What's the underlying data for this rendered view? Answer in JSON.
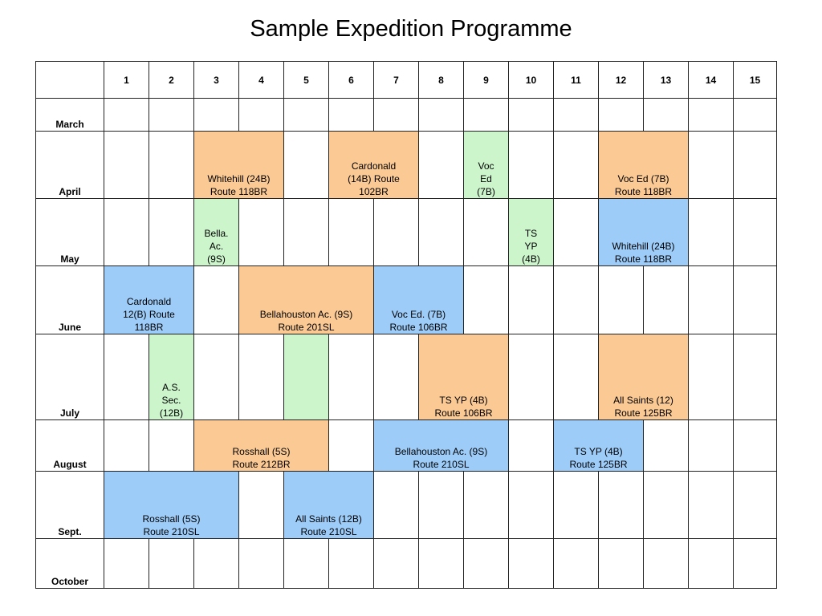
{
  "title": "Sample Expedition Programme",
  "weeks": [
    "1",
    "2",
    "3",
    "4",
    "5",
    "6",
    "7",
    "8",
    "9",
    "10",
    "11",
    "12",
    "13",
    "14",
    "15"
  ],
  "colors": {
    "orange": "#fac994",
    "green": "#ccf5cc",
    "blue": "#9dccf9"
  },
  "rows": [
    {
      "month": "March",
      "cells": [
        {
          "span": 15
        }
      ]
    },
    {
      "month": "April",
      "cells": [
        {
          "span": 2
        },
        {
          "span": 2,
          "color": "orange",
          "text": "Whitehill (24B)\nRoute 118BR"
        },
        {
          "span": 1
        },
        {
          "span": 2,
          "color": "orange",
          "text": "Cardonald\n(14B) Route\n102BR"
        },
        {
          "span": 1
        },
        {
          "span": 1,
          "color": "green",
          "text": "Voc\nEd\n(7B)"
        },
        {
          "span": 2
        },
        {
          "span": 2,
          "color": "orange",
          "text": "Voc Ed (7B)\nRoute 118BR"
        },
        {
          "span": 2
        }
      ]
    },
    {
      "month": "May",
      "cells": [
        {
          "span": 2
        },
        {
          "span": 1,
          "color": "green",
          "text": "Bella.\nAc.\n(9S)"
        },
        {
          "span": 6
        },
        {
          "span": 1,
          "color": "green",
          "text": "TS\nYP\n(4B)"
        },
        {
          "span": 1
        },
        {
          "span": 2,
          "color": "blue",
          "text": "Whitehill (24B)\nRoute 118BR"
        },
        {
          "span": 2
        }
      ]
    },
    {
      "month": "June",
      "cells": [
        {
          "span": 2,
          "color": "blue",
          "text": "Cardonald\n12(B)  Route\n118BR"
        },
        {
          "span": 1
        },
        {
          "span": 3,
          "color": "orange",
          "text": "Bellahouston Ac. (9S)\nRoute 201SL"
        },
        {
          "span": 2,
          "color": "blue",
          "text": "Voc Ed. (7B)\nRoute 106BR"
        },
        {
          "span": 7
        }
      ]
    },
    {
      "month": "July",
      "cells": [
        {
          "span": 1
        },
        {
          "span": 1,
          "color": "green",
          "text": "A.S.\nSec.\n(12B)"
        },
        {
          "span": 2
        },
        {
          "span": 1,
          "color": "green",
          "text": ""
        },
        {
          "span": 2
        },
        {
          "span": 2,
          "color": "orange",
          "text": "TS YP (4B)\nRoute 106BR"
        },
        {
          "span": 2
        },
        {
          "span": 2,
          "color": "orange",
          "text": "All Saints (12)\nRoute 125BR"
        },
        {
          "span": 2
        }
      ]
    },
    {
      "month": "August",
      "cells": [
        {
          "span": 2
        },
        {
          "span": 3,
          "color": "orange",
          "text": "Rosshall (5S)\nRoute 212BR"
        },
        {
          "span": 1
        },
        {
          "span": 3,
          "color": "blue",
          "text": "Bellahouston Ac. (9S)\nRoute 210SL"
        },
        {
          "span": 1
        },
        {
          "span": 2,
          "color": "blue",
          "text": "TS YP (4B)\nRoute 125BR"
        },
        {
          "span": 3
        }
      ]
    },
    {
      "month": "Sept.",
      "cells": [
        {
          "span": 3,
          "color": "blue",
          "text": "Rosshall (5S)\nRoute 210SL"
        },
        {
          "span": 1
        },
        {
          "span": 2,
          "color": "blue",
          "text": "All Saints (12B)\nRoute 210SL"
        },
        {
          "span": 9
        }
      ]
    },
    {
      "month": "October",
      "cells": [
        {
          "span": 15
        }
      ]
    }
  ]
}
